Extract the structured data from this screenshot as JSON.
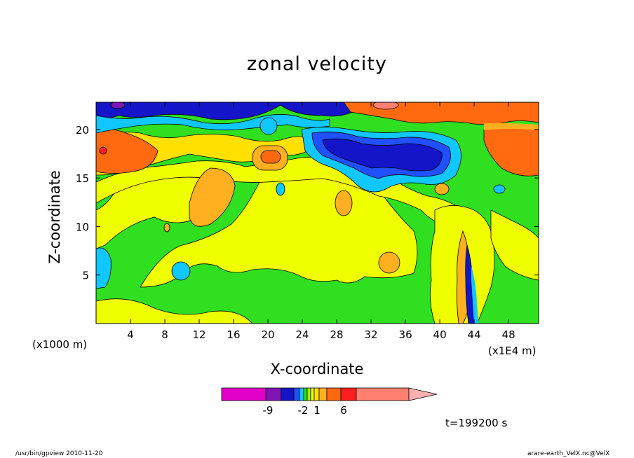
{
  "chart_data": {
    "type": "heatmap",
    "title": "zonal velocity",
    "xlabel": "X-coordinate",
    "ylabel": "Z-coordinate",
    "x_unit_label": "(x1000 m)",
    "x_scale_label": "(x1E4 m)",
    "x_ticks": [
      4,
      8,
      12,
      16,
      20,
      24,
      28,
      32,
      36,
      40,
      44,
      48
    ],
    "y_ticks": [
      5,
      10,
      15,
      20
    ],
    "xlim": [
      0,
      51.5
    ],
    "ylim": [
      0,
      22.8
    ],
    "colorbar": {
      "tick_labels": [
        "-9",
        "-2",
        "1",
        "6"
      ],
      "colors": [
        "#e100c8",
        "#7d14b4",
        "#1414c8",
        "#2050ff",
        "#10c8ff",
        "#30e020",
        "#a0f000",
        "#f0ff00",
        "#ffe000",
        "#ffb020",
        "#ff6a10",
        "#ff1e1e",
        "#ff8070",
        "#ffb0b0"
      ]
    },
    "regions": [
      {
        "level": "6 to 10",
        "color": "#ff6a10",
        "x": [
          1,
          9
        ],
        "z": [
          15.5,
          20.5
        ]
      },
      {
        "level": "6 to 10",
        "color": "#ff6a10",
        "x": [
          31,
          44
        ],
        "z": [
          20,
          22.8
        ]
      },
      {
        "level": "-9 to -2",
        "color": "#1414c8",
        "x": [
          2,
          18
        ],
        "z": [
          21,
          22.8
        ]
      },
      {
        "level": "-9 to -2",
        "color": "#1414c8",
        "x": [
          25,
          40
        ],
        "z": [
          16,
          19.5
        ]
      },
      {
        "level": "1 to 3",
        "color": "#f0ff00",
        "x": [
          6,
          40
        ],
        "z": [
          3,
          15
        ]
      },
      {
        "level": "-2 to 0",
        "color": "#10c8ff",
        "x": [
          0,
          2
        ],
        "z": [
          3,
          8
        ]
      },
      {
        "level": "3 to 5",
        "color": "#ffb020",
        "x": [
          18,
          22
        ],
        "z": [
          16,
          17.5
        ]
      }
    ]
  },
  "timestamp": "t=199200 s",
  "footer": {
    "left": "/usr/bin/gpview   2010-11-20",
    "right": "arare-earth_VelX.nc@VelX"
  }
}
